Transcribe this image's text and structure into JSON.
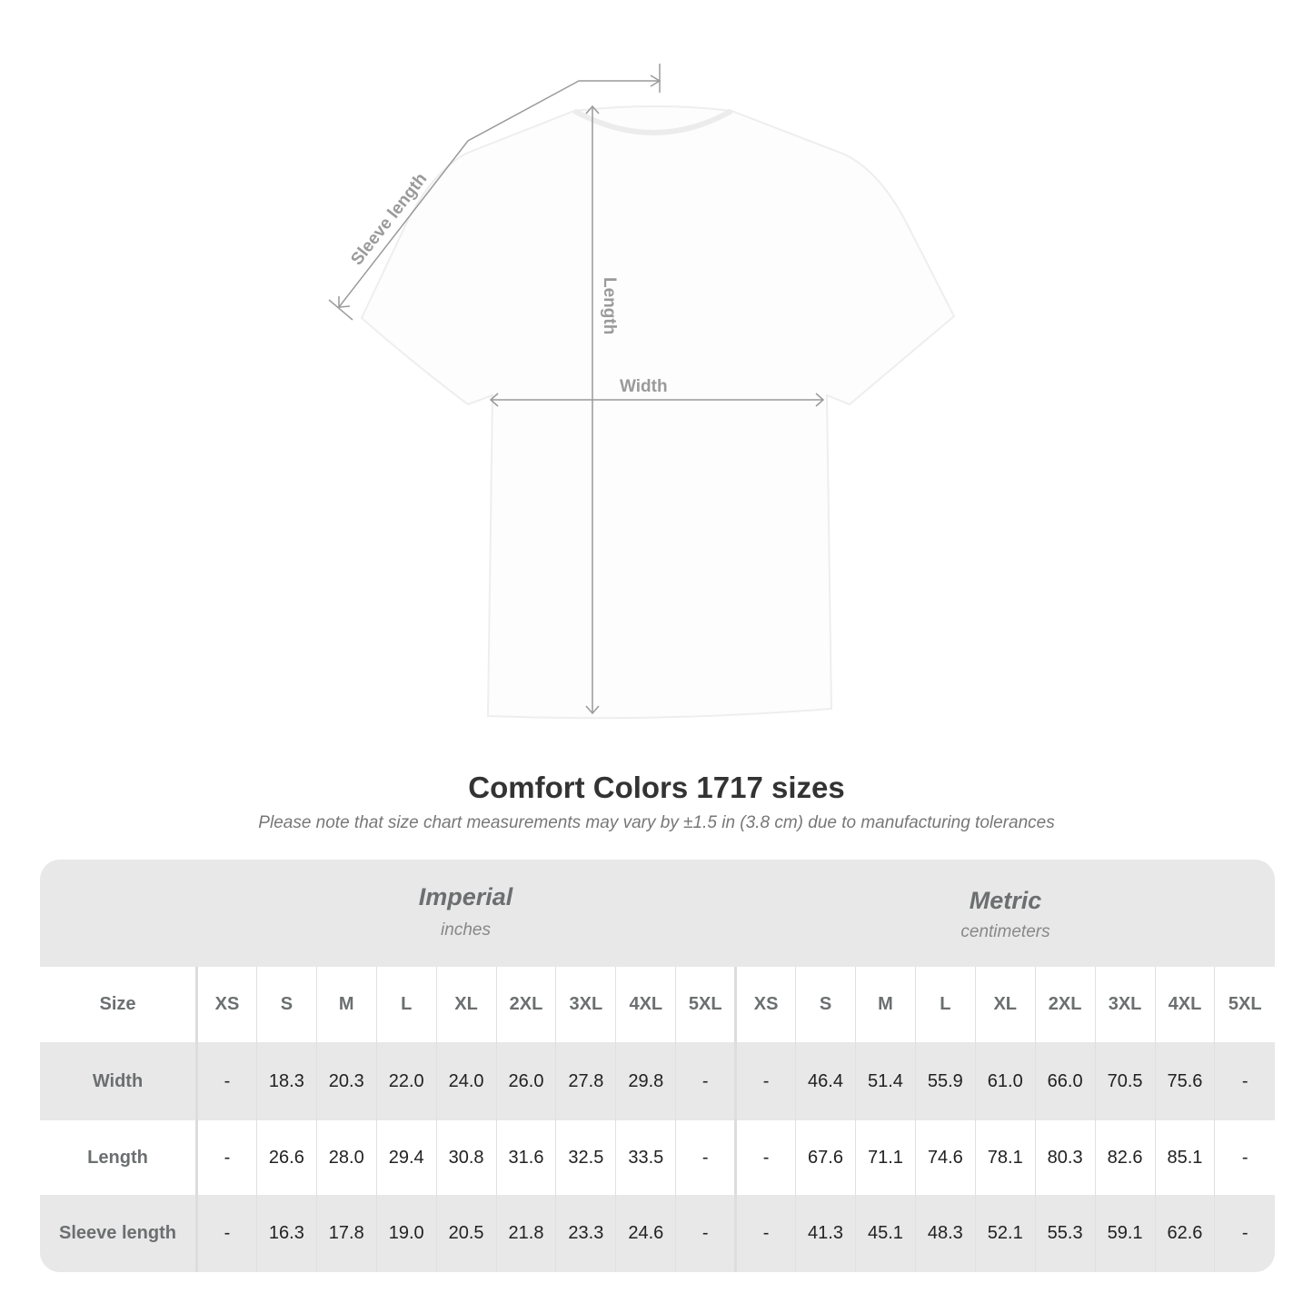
{
  "diagram": {
    "labels": {
      "sleeve": "Sleeve length",
      "length": "Length",
      "width": "Width"
    }
  },
  "title": "Comfort Colors 1717 sizes",
  "subtitle": "Please note that size chart measurements may vary by ±1.5 in (3.8 cm) due to manufacturing tolerances",
  "table": {
    "imperial": {
      "name": "Imperial",
      "unit": "inches"
    },
    "metric": {
      "name": "Metric",
      "unit": "centimeters"
    },
    "size_label": "Size",
    "sizes": [
      "XS",
      "S",
      "M",
      "L",
      "XL",
      "2XL",
      "3XL",
      "4XL",
      "5XL"
    ],
    "rows": [
      {
        "label": "Width",
        "imperial": [
          "-",
          "18.3",
          "20.3",
          "22.0",
          "24.0",
          "26.0",
          "27.8",
          "29.8",
          "-"
        ],
        "metric": [
          "-",
          "46.4",
          "51.4",
          "55.9",
          "61.0",
          "66.0",
          "70.5",
          "75.6",
          "-"
        ]
      },
      {
        "label": "Length",
        "imperial": [
          "-",
          "26.6",
          "28.0",
          "29.4",
          "30.8",
          "31.6",
          "32.5",
          "33.5",
          "-"
        ],
        "metric": [
          "-",
          "67.6",
          "71.1",
          "74.6",
          "78.1",
          "80.3",
          "82.6",
          "85.1",
          "-"
        ]
      },
      {
        "label": "Sleeve length",
        "imperial": [
          "-",
          "16.3",
          "17.8",
          "19.0",
          "20.5",
          "21.8",
          "23.3",
          "24.6",
          "-"
        ],
        "metric": [
          "-",
          "41.3",
          "45.1",
          "48.3",
          "52.1",
          "55.3",
          "59.1",
          "62.6",
          "-"
        ]
      }
    ]
  }
}
